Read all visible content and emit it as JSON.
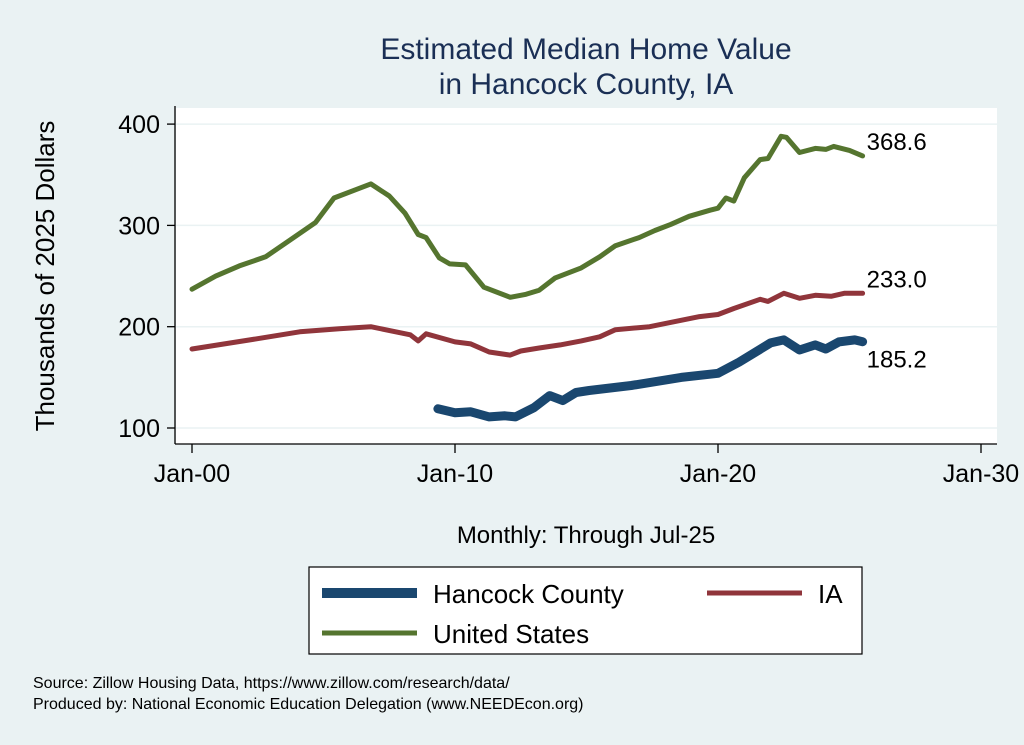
{
  "chart_data": {
    "type": "line",
    "title": [
      "Estimated Median Home Value",
      "in Hancock County, IA"
    ],
    "xlabel": "Monthly: Through Jul-25",
    "ylabel": "Thousands of 2025 Dollars",
    "xlim": [
      1999.4,
      2031.0
    ],
    "ylim": [
      84,
      415
    ],
    "x_ticks": [
      {
        "value": 2000,
        "label": "Jan-00"
      },
      {
        "value": 2010,
        "label": "Jan-10"
      },
      {
        "value": 2020,
        "label": "Jan-20"
      },
      {
        "value": 2030,
        "label": "Jan-30"
      }
    ],
    "y_ticks": [
      100,
      200,
      300,
      400
    ],
    "grid": true,
    "legend_position": "bottom",
    "series": [
      {
        "name": "Hancock County",
        "color": "#1a476f",
        "end_label": "185.2",
        "x": [
          2009.35,
          2010,
          2010.6,
          2011.3,
          2011.9,
          2012.3,
          2013.0,
          2013.6,
          2014.1,
          2014.6,
          2015.1,
          2016.7,
          2018.6,
          2020,
          2020.8,
          2022,
          2022.5,
          2023.1,
          2023.7,
          2024.1,
          2024.6,
          2025.2,
          2025.5
        ],
        "y": [
          119,
          115,
          116,
          111,
          112,
          111,
          120,
          132,
          127,
          135,
          137,
          142,
          150,
          154,
          165,
          184,
          187,
          177,
          182,
          178,
          185,
          187,
          185.2
        ]
      },
      {
        "name": "IA",
        "color": "#90353b",
        "end_label": "233.0",
        "x": [
          2000,
          2002.2,
          2004.1,
          2005.6,
          2006.8,
          2008.3,
          2008.6,
          2008.9,
          2010,
          2010.6,
          2011.3,
          2012.1,
          2012.5,
          2013.2,
          2014,
          2014.8,
          2015.5,
          2016.1,
          2017.4,
          2019.3,
          2020,
          2020.6,
          2021.6,
          2021.9,
          2022.5,
          2023.1,
          2023.7,
          2024.3,
          2024.8,
          2025.5
        ],
        "y": [
          178,
          187,
          195,
          198,
          200,
          192,
          186,
          193,
          185,
          183,
          175,
          172,
          176,
          179,
          182,
          186,
          190,
          197,
          200,
          210,
          212,
          218,
          227,
          225,
          233,
          228,
          231,
          230,
          233,
          233.0
        ]
      },
      {
        "name": "United States",
        "color": "#55752f",
        "end_label": "368.6",
        "x": [
          2000,
          2000.9,
          2001.8,
          2002.8,
          2003.7,
          2004.7,
          2005.4,
          2006.2,
          2006.8,
          2007.5,
          2008.1,
          2008.6,
          2008.9,
          2009.4,
          2009.8,
          2010.4,
          2011.1,
          2012.1,
          2012.7,
          2013.2,
          2013.8,
          2014.8,
          2015.5,
          2016.1,
          2017.0,
          2017.6,
          2018.2,
          2018.9,
          2019.7,
          2020,
          2020.3,
          2020.6,
          2021.0,
          2021.6,
          2021.9,
          2022.4,
          2022.6,
          2023.1,
          2023.7,
          2024.1,
          2024.4,
          2025.0,
          2025.5
        ],
        "y": [
          237,
          250,
          260,
          269,
          285,
          303,
          327,
          335,
          341,
          329,
          312,
          291,
          288,
          268,
          262,
          261,
          239,
          229,
          232,
          236,
          248,
          258,
          269,
          280,
          288,
          295,
          301,
          309,
          315,
          317,
          327,
          324,
          347,
          365,
          366,
          388,
          387,
          372,
          376,
          375,
          378,
          374,
          368.6
        ]
      }
    ]
  },
  "source": "Source: Zillow Housing Data, https://www.zillow.com/research/data/",
  "producer": "Produced by: National Economic Education Delegation (www.NEEDEcon.org)"
}
